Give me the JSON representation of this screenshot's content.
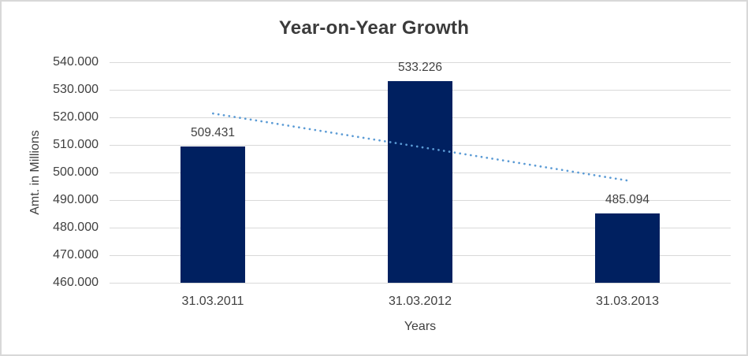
{
  "chart_data": {
    "type": "bar",
    "title": "Year-on-Year Growth",
    "categories": [
      "31.03.2011",
      "31.03.2012",
      "31.03.2013"
    ],
    "values": [
      509.431,
      533.226,
      485.094
    ],
    "data_labels": [
      "509.431",
      "533.226",
      "485.094"
    ],
    "xlabel": "Years",
    "ylabel": "Amt. in Millions",
    "ylim": [
      460,
      540
    ],
    "yticks": [
      460,
      470,
      480,
      490,
      500,
      510,
      520,
      530,
      540
    ],
    "ytick_labels": [
      "460.000",
      "470.000",
      "480.000",
      "490.000",
      "500.000",
      "510.000",
      "520.000",
      "530.000",
      "540.000"
    ],
    "grid": "horizontal",
    "legend": "none",
    "trendline": {
      "type": "linear",
      "style": "dotted",
      "start_value": 521.4,
      "end_value": 497.1,
      "color": "#5B9BD5"
    },
    "colors": {
      "bar": "#002060",
      "gridline": "#D9D9D9",
      "text": "#404040",
      "title": "#3B3B3B",
      "trendline": "#5B9BD5",
      "border": "#D8D8D8",
      "background": "#FFFFFF"
    }
  }
}
